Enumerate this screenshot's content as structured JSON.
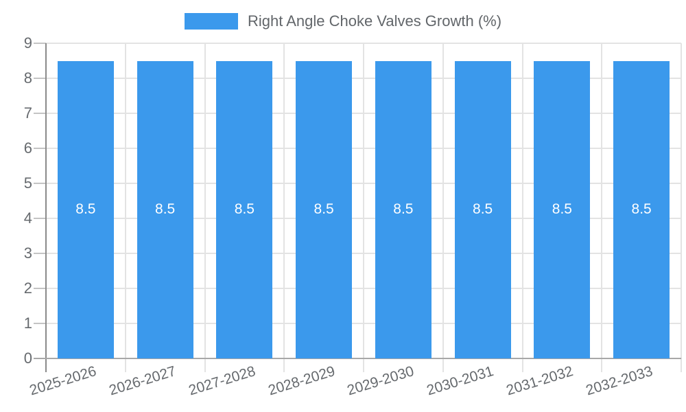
{
  "chart_data": {
    "type": "bar",
    "title": "",
    "legend": {
      "label": "Right Angle Choke Valves Growth (%)",
      "position": "top"
    },
    "categories": [
      "2025-2026",
      "2026-2027",
      "2027-2028",
      "2028-2029",
      "2029-2030",
      "2030-2031",
      "2031-2032",
      "2032-2033"
    ],
    "series": [
      {
        "name": "Right Angle Choke Valves Growth (%)",
        "values": [
          8.5,
          8.5,
          8.5,
          8.5,
          8.5,
          8.5,
          8.5,
          8.5
        ]
      }
    ],
    "bar_labels": [
      "8.5",
      "8.5",
      "8.5",
      "8.5",
      "8.5",
      "8.5",
      "8.5",
      "8.5"
    ],
    "xlabel": "",
    "ylabel": "",
    "ylim": [
      0,
      9
    ],
    "yticks": [
      0,
      1,
      2,
      3,
      4,
      5,
      6,
      7,
      8,
      9
    ],
    "grid": true,
    "colors": {
      "bar": "#3b99ec",
      "bar_label_text": "#ffffff",
      "grid_line": "#e3e3e3",
      "axis_line": "#999999",
      "tick_text": "#666a6e",
      "legend_text": "#62666a"
    }
  }
}
